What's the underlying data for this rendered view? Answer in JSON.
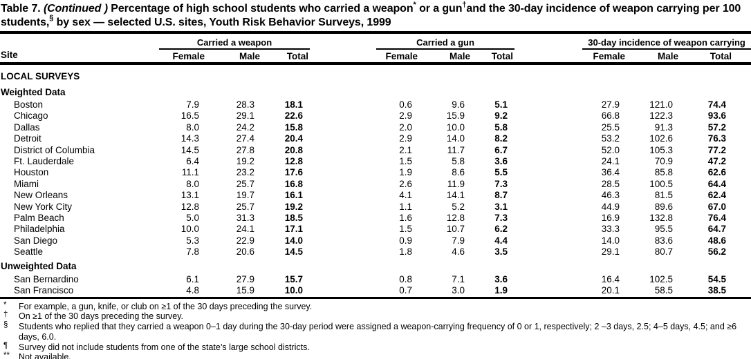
{
  "title": {
    "part1": "Table 7. ",
    "continued": "(Continued )",
    "part2": " Percentage of high school students who carried a weapon",
    "sup1": "*",
    "part3": " or a gun",
    "sup2": "†",
    "part4": "and the 30-day incidence of weapon carrying per 100 students,",
    "sup3": "§",
    "part5": " by sex — selected U.S. sites, Youth Risk Behavior Surveys, 1999"
  },
  "columns": {
    "site": "Site",
    "groups": [
      {
        "label": "Carried a weapon",
        "sub": [
          "Female",
          "Male",
          "Total"
        ]
      },
      {
        "label": "Carried a gun",
        "sub": [
          "Female",
          "Male",
          "Total"
        ]
      },
      {
        "label": "30-day incidence of weapon carrying",
        "sub": [
          "Female",
          "Male",
          "Total"
        ]
      }
    ]
  },
  "table": {
    "body": [
      {
        "type": "section",
        "label": "LOCAL SURVEYS"
      },
      {
        "type": "subsection",
        "label": "Weighted Data"
      },
      {
        "type": "row",
        "site": "Boston",
        "values": [
          "7.9",
          "28.3",
          "18.1",
          "0.6",
          "9.6",
          "5.1",
          "27.9",
          "121.0",
          "74.4"
        ]
      },
      {
        "type": "row",
        "site": "Chicago",
        "values": [
          "16.5",
          "29.1",
          "22.6",
          "2.9",
          "15.9",
          "9.2",
          "66.8",
          "122.3",
          "93.6"
        ]
      },
      {
        "type": "row",
        "site": "Dallas",
        "values": [
          "8.0",
          "24.2",
          "15.8",
          "2.0",
          "10.0",
          "5.8",
          "25.5",
          "91.3",
          "57.2"
        ]
      },
      {
        "type": "row",
        "site": "Detroit",
        "values": [
          "14.3",
          "27.4",
          "20.4",
          "2.9",
          "14.0",
          "8.2",
          "53.2",
          "102.6",
          "76.3"
        ]
      },
      {
        "type": "row",
        "site": "District of Columbia",
        "values": [
          "14.5",
          "27.8",
          "20.8",
          "2.1",
          "11.7",
          "6.7",
          "52.0",
          "105.3",
          "77.2"
        ]
      },
      {
        "type": "row",
        "site": "Ft. Lauderdale",
        "values": [
          "6.4",
          "19.2",
          "12.8",
          "1.5",
          "5.8",
          "3.6",
          "24.1",
          "70.9",
          "47.2"
        ]
      },
      {
        "type": "row",
        "site": "Houston",
        "values": [
          "11.1",
          "23.2",
          "17.6",
          "1.9",
          "8.6",
          "5.5",
          "36.4",
          "85.8",
          "62.6"
        ]
      },
      {
        "type": "row",
        "site": "Miami",
        "values": [
          "8.0",
          "25.7",
          "16.8",
          "2.6",
          "11.9",
          "7.3",
          "28.5",
          "100.5",
          "64.4"
        ]
      },
      {
        "type": "row",
        "site": "New Orleans",
        "values": [
          "13.1",
          "19.7",
          "16.1",
          "4.1",
          "14.1",
          "8.7",
          "46.3",
          "81.5",
          "62.4"
        ]
      },
      {
        "type": "row",
        "site": "New York City",
        "values": [
          "12.8",
          "25.7",
          "19.2",
          "1.1",
          "5.2",
          "3.1",
          "44.9",
          "89.6",
          "67.0"
        ]
      },
      {
        "type": "row",
        "site": "Palm Beach",
        "values": [
          "5.0",
          "31.3",
          "18.5",
          "1.6",
          "12.8",
          "7.3",
          "16.9",
          "132.8",
          "76.4"
        ]
      },
      {
        "type": "row",
        "site": "Philadelphia",
        "values": [
          "10.0",
          "24.1",
          "17.1",
          "1.5",
          "10.7",
          "6.2",
          "33.3",
          "95.5",
          "64.7"
        ]
      },
      {
        "type": "row",
        "site": "San Diego",
        "values": [
          "5.3",
          "22.9",
          "14.0",
          "0.9",
          "7.9",
          "4.4",
          "14.0",
          "83.6",
          "48.6"
        ]
      },
      {
        "type": "row",
        "site": "Seattle",
        "values": [
          "7.8",
          "20.6",
          "14.5",
          "1.8",
          "4.6",
          "3.5",
          "29.1",
          "80.7",
          "56.2"
        ]
      },
      {
        "type": "subsection",
        "label": "Unweighted Data"
      },
      {
        "type": "row",
        "site": "San Bernardino",
        "values": [
          "6.1",
          "27.9",
          "15.7",
          "0.8",
          "7.1",
          "3.6",
          "16.4",
          "102.5",
          "54.5"
        ]
      },
      {
        "type": "row",
        "site": "San Francisco",
        "values": [
          "4.8",
          "15.9",
          "10.0",
          "0.7",
          "3.0",
          "1.9",
          "20.1",
          "58.5",
          "38.5"
        ]
      }
    ]
  },
  "footnotes": [
    {
      "symbol": "*",
      "text": "For example, a gun, knife, or club on ≥1 of the 30 days preceding the survey."
    },
    {
      "symbol": "†",
      "text": "On ≥1 of the 30 days preceding the survey."
    },
    {
      "symbol": "§",
      "text": "Students who replied that they carried a weapon 0–1 day during the 30-day period were assigned a weapon-carrying frequency of 0 or 1, respectively; 2 –3 days, 2.5; 4–5 days, 4.5; and ≥6 days, 6.0."
    },
    {
      "symbol": "¶",
      "text": "Survey did not include students from one of the state’s large school districts."
    },
    {
      "symbol": "**",
      "text": "Not available."
    }
  ]
}
